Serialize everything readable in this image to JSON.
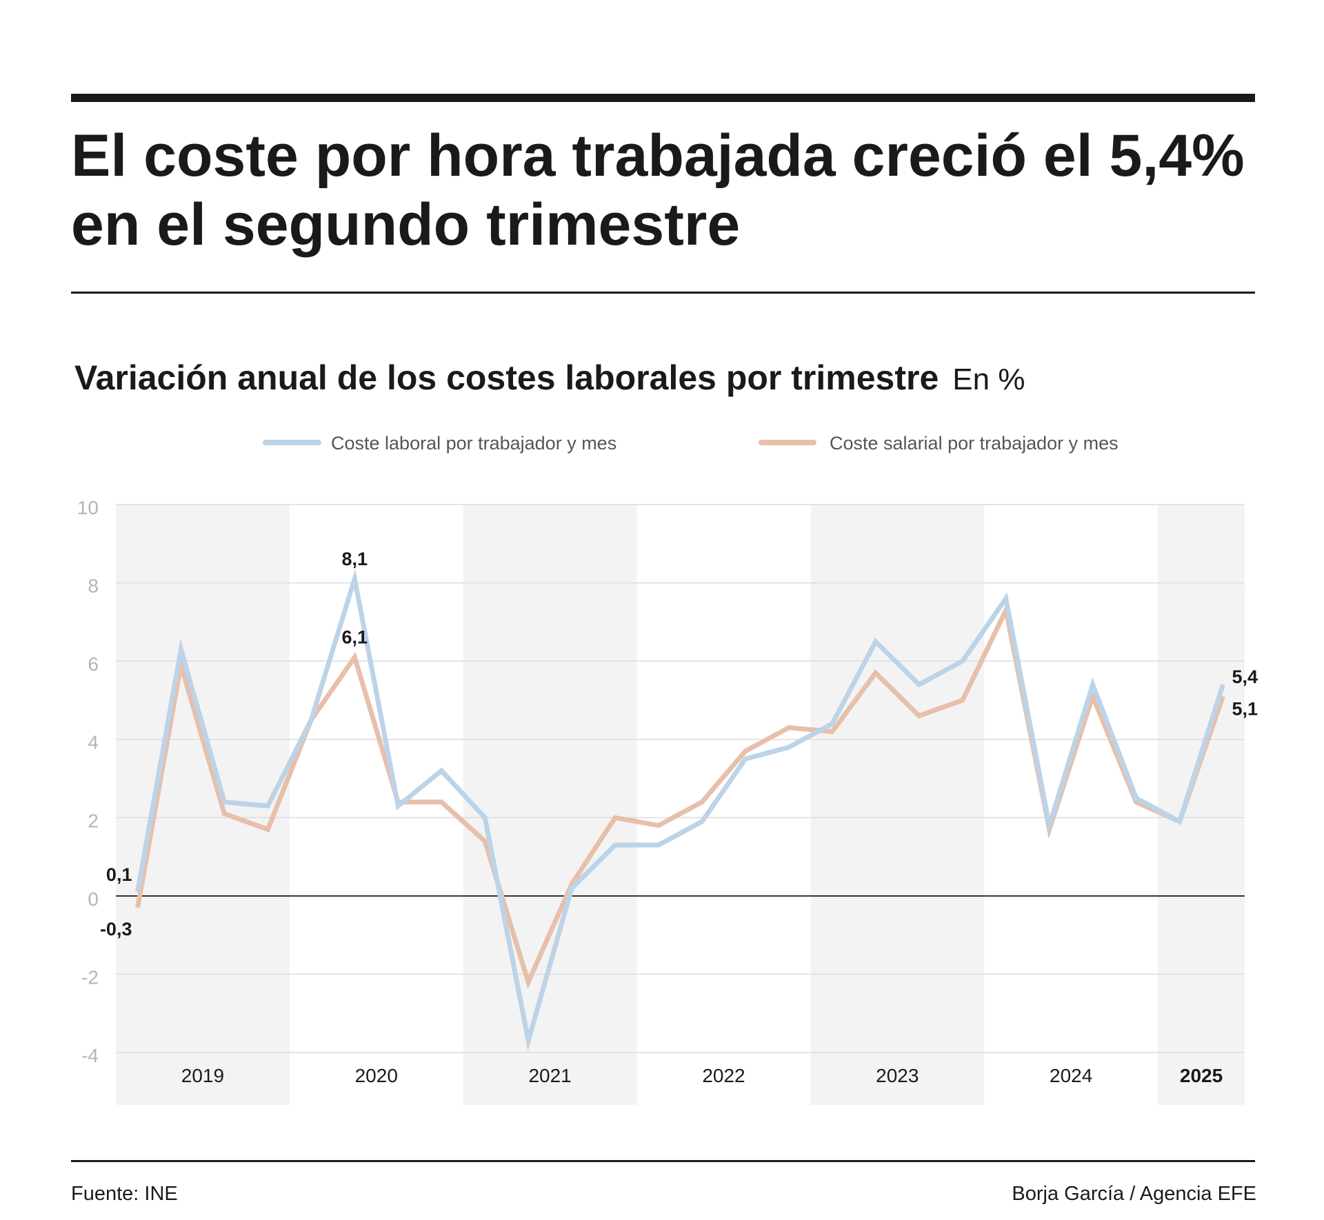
{
  "header": {
    "title": "El coste por hora trabajada creció el 5,4% en el segundo trimestre",
    "subtitle": "Variación anual de los costes laborales por trimestre",
    "unit": "En %"
  },
  "footer": {
    "source": "Fuente: INE",
    "credit": "Borja García / Agencia EFE"
  },
  "colors": {
    "series_laboral": "#bcd3e8",
    "series_salarial": "#e8bfaa",
    "band": "#f3f3f3",
    "grid": "#dcdcdc",
    "zero_line": "#1a1a1a"
  },
  "chart_data": {
    "type": "line",
    "ylim": [
      -4,
      10
    ],
    "yticks": [
      "10",
      "8",
      "6",
      "4",
      "2",
      "0",
      "-2",
      "-4"
    ],
    "grid": true,
    "legend_position": "top",
    "years": [
      "2019",
      "2020",
      "2021",
      "2022",
      "2023",
      "2024",
      "2025"
    ],
    "quarters_per_year": [
      4,
      4,
      4,
      4,
      4,
      4,
      2
    ],
    "x": [
      "2019 T1",
      "2019 T2",
      "2019 T3",
      "2019 T4",
      "2020 T1",
      "2020 T2",
      "2020 T3",
      "2020 T4",
      "2021 T1",
      "2021 T2",
      "2021 T3",
      "2021 T4",
      "2022 T1",
      "2022 T2",
      "2022 T3",
      "2022 T4",
      "2023 T1",
      "2023 T2",
      "2023 T3",
      "2023 T4",
      "2024 T1",
      "2024 T2",
      "2024 T3",
      "2024 T4",
      "2025 T1",
      "2025 T2"
    ],
    "series": [
      {
        "name": "Coste laboral por trabajador y mes",
        "values": [
          0.1,
          6.3,
          2.4,
          2.3,
          4.5,
          8.1,
          2.3,
          3.2,
          2.0,
          -3.7,
          0.2,
          1.3,
          1.3,
          1.9,
          3.5,
          3.8,
          4.4,
          6.5,
          5.4,
          6.0,
          7.6,
          1.8,
          5.4,
          2.5,
          1.9,
          5.4
        ]
      },
      {
        "name": "Coste salarial por trabajador y mes",
        "values": [
          -0.3,
          5.9,
          2.1,
          1.7,
          4.5,
          6.1,
          2.4,
          2.4,
          1.4,
          -2.2,
          0.3,
          2.0,
          1.8,
          2.4,
          3.7,
          4.3,
          4.2,
          5.7,
          4.6,
          5.0,
          7.3,
          1.7,
          5.1,
          2.4,
          1.9,
          5.1
        ]
      }
    ],
    "data_labels": [
      {
        "series": 0,
        "index": 0,
        "text": "0,1"
      },
      {
        "series": 1,
        "index": 0,
        "text": "-0,3"
      },
      {
        "series": 0,
        "index": 5,
        "text": "8,1"
      },
      {
        "series": 1,
        "index": 5,
        "text": "6,1"
      },
      {
        "series": 0,
        "index": 25,
        "text": "5,4"
      },
      {
        "series": 1,
        "index": 25,
        "text": "5,1"
      }
    ]
  }
}
